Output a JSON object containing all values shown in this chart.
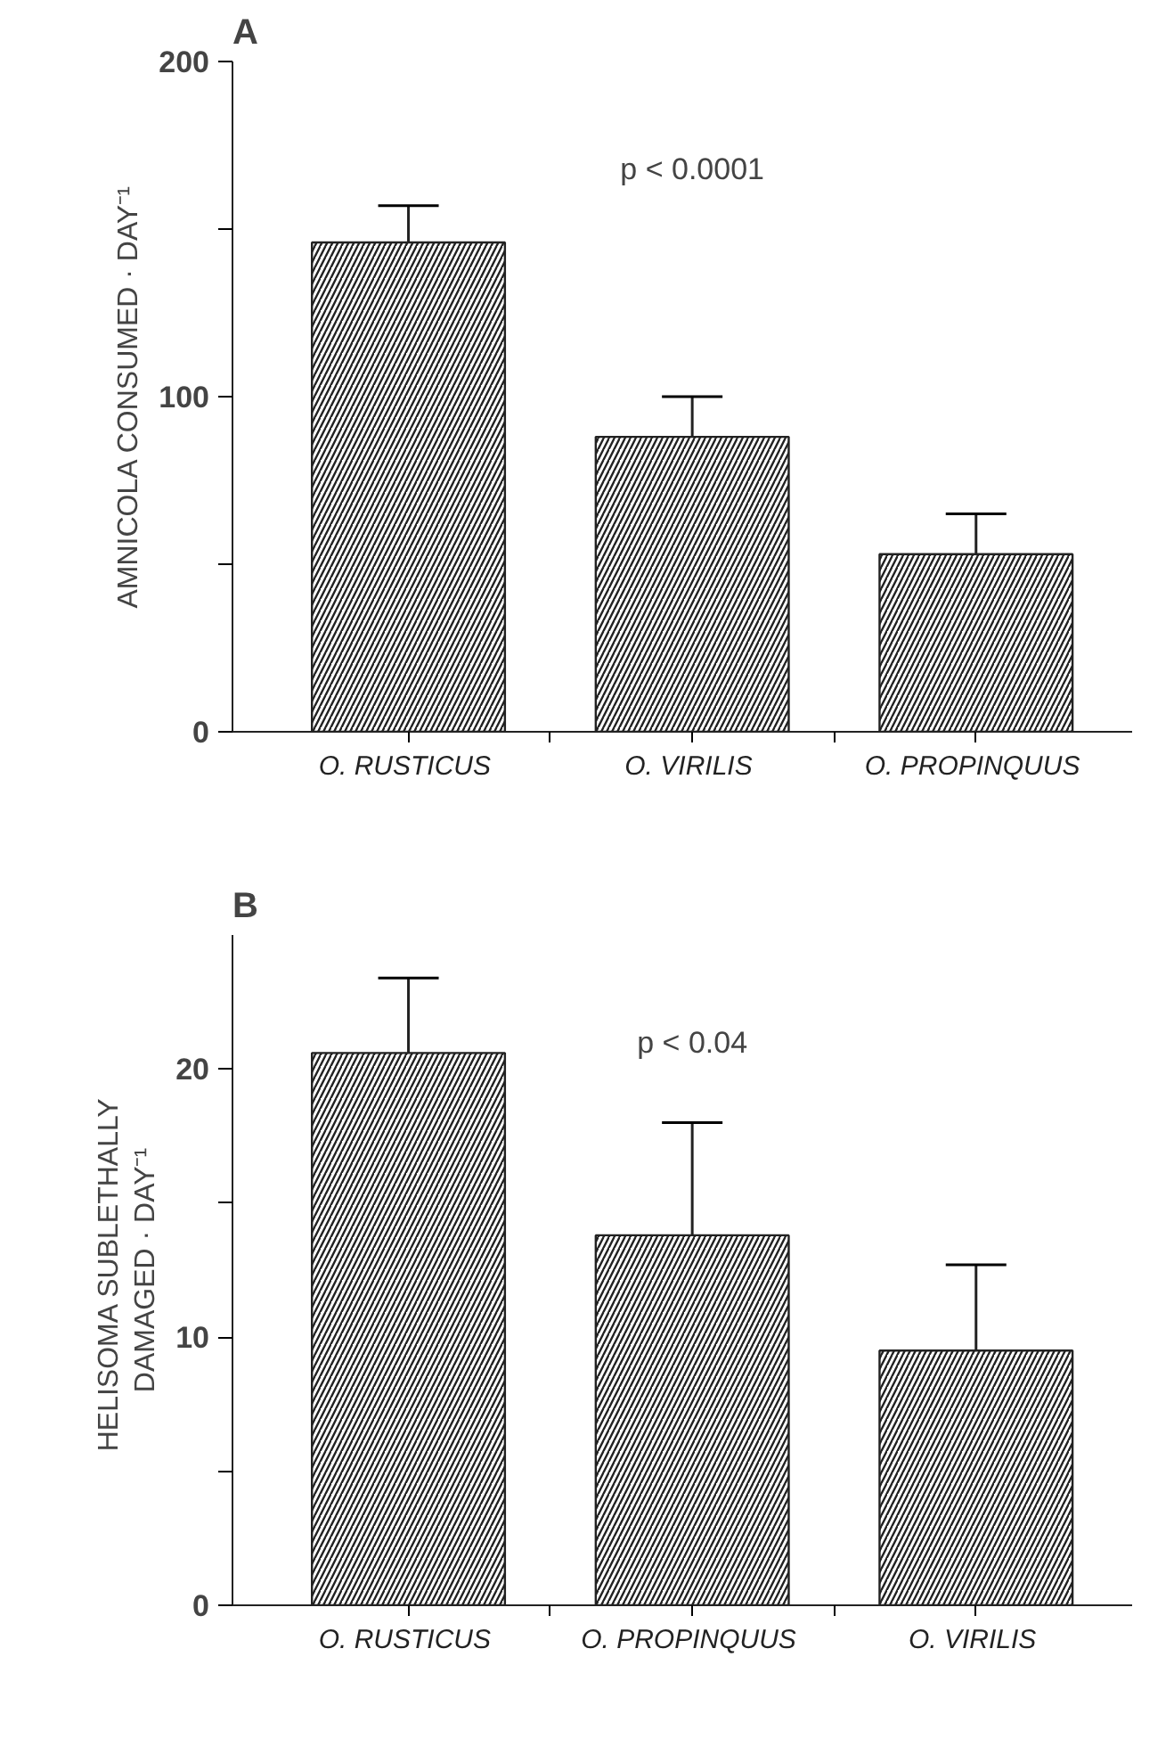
{
  "chart_data": [
    {
      "type": "bar",
      "title": "A",
      "ylabel": "AMNICOLA CONSUMED · DAY⁻¹",
      "categories": [
        "O.  RUSTICUS",
        "O.  VIRILIS",
        "O.  PROPINQUUS"
      ],
      "values": [
        146,
        88,
        53
      ],
      "errors": [
        11,
        12,
        12
      ],
      "color": "#222222",
      "ylim": [
        0,
        200
      ],
      "yticks": [
        0,
        {
          "value": 50,
          "label": null
        },
        100,
        {
          "value": 150,
          "label": null
        },
        200
      ],
      "grid": false,
      "annotations": [
        "p < 0.0001"
      ]
    },
    {
      "type": "bar",
      "title": "B",
      "ylabel": "HELISOMA  SUBLETHALLY\nDAMAGED · DAY⁻¹",
      "categories": [
        "O.  RUSTICUS",
        "O.  PROPINQUUS",
        "O.  VIRILIS"
      ],
      "values": [
        20.6,
        13.8,
        9.5
      ],
      "errors": [
        2.8,
        4.2,
        3.2
      ],
      "color": "#222222",
      "ylim": [
        0,
        25
      ],
      "yticks": [
        0,
        {
          "value": 5,
          "label": null
        },
        10,
        {
          "value": 15,
          "label": null
        },
        20
      ],
      "grid": false,
      "annotations": [
        "p < 0.04"
      ]
    }
  ]
}
